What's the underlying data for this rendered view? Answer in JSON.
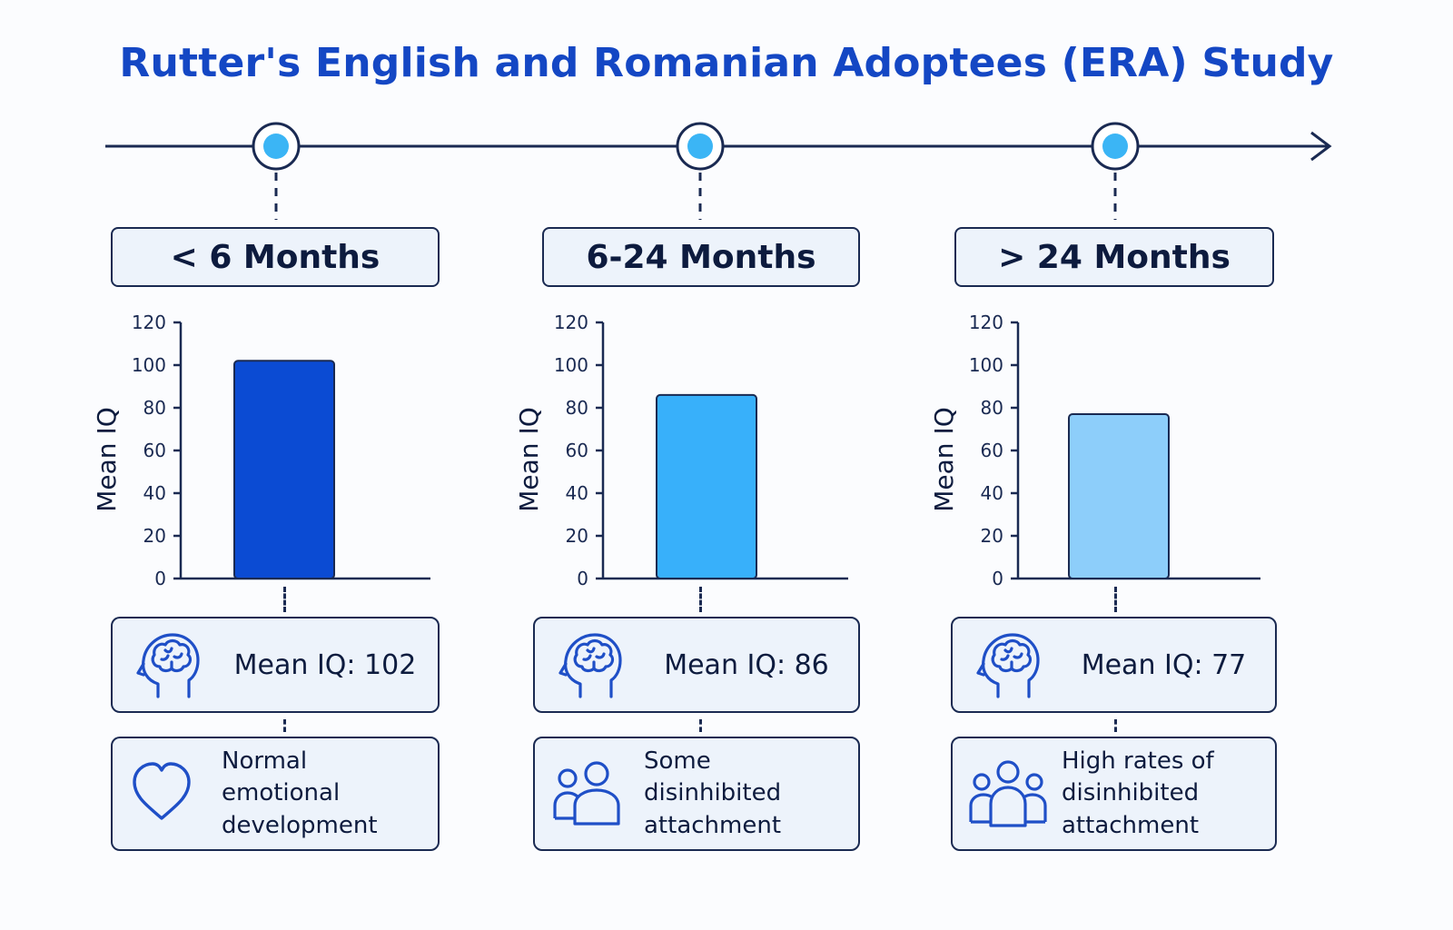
{
  "title": "Rutter's English and Romanian Adoptees (ERA) Study",
  "colors": {
    "title": "#1447c4",
    "ink": "#1a2a52",
    "card_fill": "#edf3fb",
    "node_fill": "#3bb5f5",
    "icon": "#1f4fc7"
  },
  "stages": [
    {
      "label": "< 6 Months",
      "iq_text": "Mean IQ: 102",
      "outcome_text": "Normal emotional\ndevelopment",
      "iq_icon": "brain-head-icon",
      "outcome_icon": "heart-icon"
    },
    {
      "label": "6-24 Months",
      "iq_text": "Mean IQ: 86",
      "outcome_text": "Some disinhibited\nattachment",
      "iq_icon": "brain-head-icon",
      "outcome_icon": "two-people-icon"
    },
    {
      "label": "> 24 Months",
      "iq_text": "Mean IQ: 77",
      "outcome_text": "High rates of\ndisinhibited\nattachment",
      "iq_icon": "brain-head-icon",
      "outcome_icon": "group-people-icon"
    }
  ],
  "chart_data": [
    {
      "type": "bar",
      "categories": [
        "< 6 Months"
      ],
      "values": [
        102
      ],
      "ylabel": "Mean IQ",
      "ylim": [
        0,
        120
      ],
      "yticks": [
        0,
        20,
        40,
        60,
        80,
        100,
        120
      ],
      "color": "#0b4bd3"
    },
    {
      "type": "bar",
      "categories": [
        "6-24 Months"
      ],
      "values": [
        86
      ],
      "ylabel": "Mean IQ",
      "ylim": [
        0,
        120
      ],
      "yticks": [
        0,
        20,
        40,
        60,
        80,
        100,
        120
      ],
      "color": "#38b0fa"
    },
    {
      "type": "bar",
      "categories": [
        "> 24 Months"
      ],
      "values": [
        77
      ],
      "ylabel": "Mean IQ",
      "ylim": [
        0,
        120
      ],
      "yticks": [
        0,
        20,
        40,
        60,
        80,
        100,
        120
      ],
      "color": "#8dcefa"
    }
  ]
}
